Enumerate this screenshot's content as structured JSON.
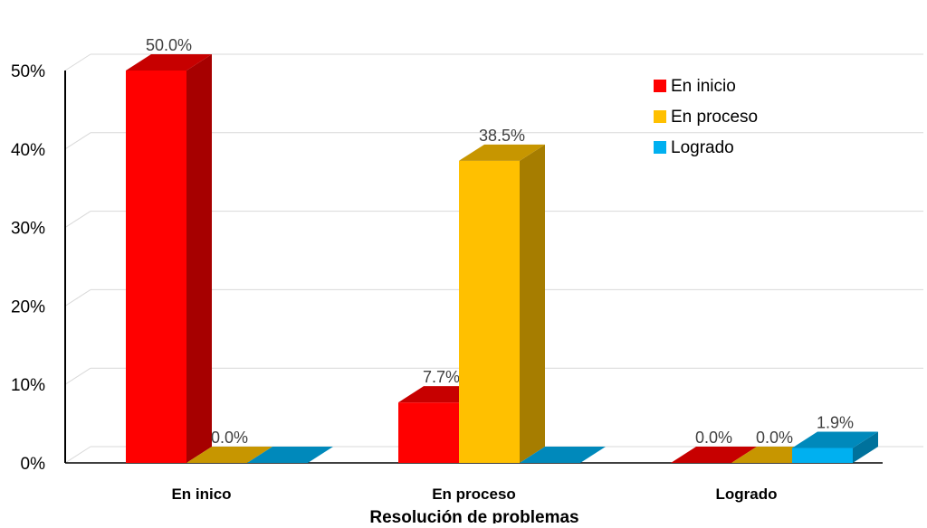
{
  "chart_data": {
    "type": "bar",
    "title": "",
    "xlabel": "Resolución de problemas",
    "ylabel": "",
    "categories": [
      "En inico",
      "En proceso",
      "Logrado"
    ],
    "series": [
      {
        "name": "En inicio",
        "values": [
          50.0,
          7.7,
          0.0
        ],
        "data_labels": [
          "50.0%",
          "7.7%",
          "0.0%"
        ],
        "color": "#FF0000"
      },
      {
        "name": "En proceso",
        "values": [
          0.0,
          38.5,
          0.0
        ],
        "data_labels": [
          "0.0%",
          "38.5%",
          "0.0%"
        ],
        "color": "#FFC000"
      },
      {
        "name": "Logrado",
        "values": [
          0.0,
          0.0,
          1.9
        ],
        "data_labels": [
          "",
          "",
          "1.9%"
        ],
        "color": "#00B0F0"
      }
    ],
    "ylim": [
      0,
      50
    ],
    "yticks": [
      "0%",
      "10%",
      "20%",
      "30%",
      "40%",
      "50%"
    ],
    "grid": true,
    "legend_position": "top-right",
    "style": "3d-clustered-column"
  }
}
